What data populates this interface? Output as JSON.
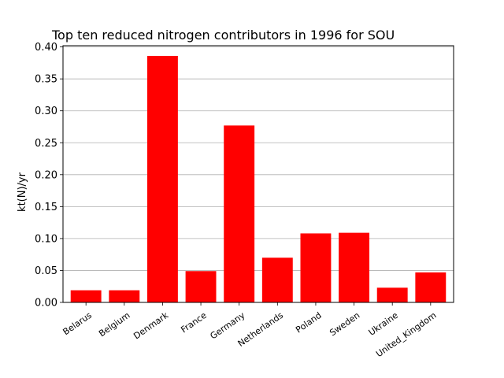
{
  "chart_data": {
    "type": "bar",
    "title": "Top ten reduced nitrogen contributors in 1996 for  SOU",
    "xlabel": "",
    "ylabel": "kt(N)/yr",
    "categories": [
      "Belarus",
      "Belgium",
      "Denmark",
      "France",
      "Germany",
      "Netherlands",
      "Poland",
      "Sweden",
      "Ukraine",
      "United_Kingdom"
    ],
    "values": [
      0.019,
      0.019,
      0.386,
      0.049,
      0.277,
      0.07,
      0.108,
      0.109,
      0.023,
      0.047
    ],
    "ylim": [
      0,
      0.402
    ],
    "yticks": [
      "0.00",
      "0.05",
      "0.10",
      "0.15",
      "0.20",
      "0.25",
      "0.30",
      "0.35",
      "0.40"
    ],
    "grid": "horizontal",
    "bar_color": "#ff0000",
    "grid_color": "#b0b0b0",
    "xtick_rotation": "35 degrees"
  }
}
